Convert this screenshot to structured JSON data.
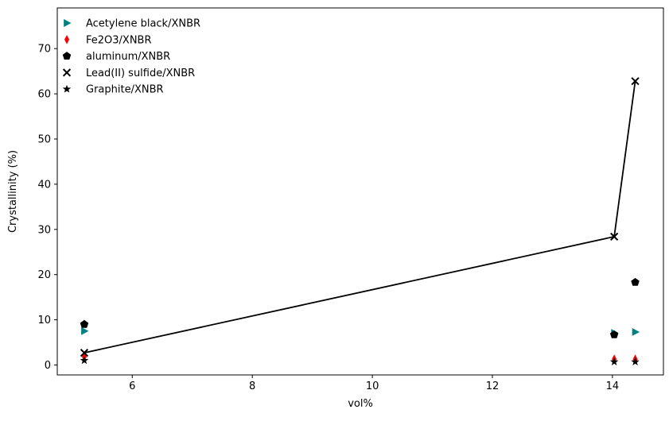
{
  "chart_data": {
    "type": "scatter",
    "title": "",
    "xlabel": "vol%",
    "ylabel": "Crystallinity (%)",
    "xlim": [
      4.75,
      14.85
    ],
    "ylim": [
      -2.2,
      79.0
    ],
    "xticks": [
      6,
      8,
      10,
      12,
      14
    ],
    "yticks": [
      0,
      10,
      20,
      30,
      40,
      50,
      60,
      70
    ],
    "grid": false,
    "legend_position": "top-left",
    "series": [
      {
        "name": "Acetylene black/XNBR",
        "marker": "triangle-right",
        "color": "#008080",
        "x": [
          5.2,
          14.03,
          14.38
        ],
        "y": [
          7.5,
          7.1,
          7.3
        ]
      },
      {
        "name": "Fe2O3/XNBR",
        "marker": "thin-diamond",
        "color": "#ff0000",
        "x": [
          5.2,
          14.03,
          14.38
        ],
        "y": [
          1.8,
          1.3,
          1.3
        ]
      },
      {
        "name": "aluminum/XNBR",
        "marker": "pentagon",
        "color": "#000000",
        "x": [
          5.2,
          14.03,
          14.38
        ],
        "y": [
          9.0,
          6.7,
          18.3
        ]
      },
      {
        "name": "Lead(II) sulfide/XNBR",
        "marker": "x",
        "color": "#000000",
        "connect_line": true,
        "x": [
          5.2,
          14.03,
          14.38
        ],
        "y": [
          2.7,
          28.4,
          62.8
        ]
      },
      {
        "name": "Graphite/XNBR",
        "marker": "star",
        "color": "#000000",
        "x": [
          5.2,
          14.03,
          14.38
        ],
        "y": [
          1.0,
          0.7,
          0.7
        ]
      }
    ]
  }
}
